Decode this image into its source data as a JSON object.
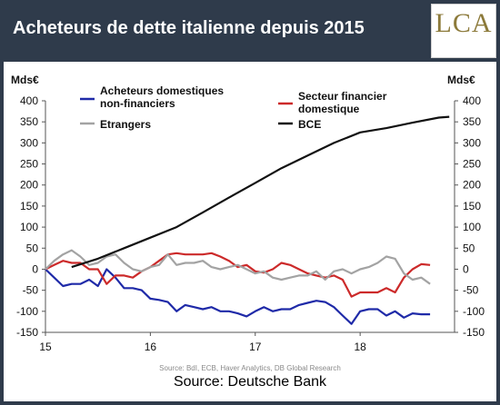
{
  "title": "Acheteurs de dette italienne depuis 2015",
  "logo": "LCA",
  "source_main": "Source: Deutsche Bank",
  "colors": {
    "background": "#2f3b4b",
    "domestic_nonfin": "#1f2aa8",
    "financial": "#cc2a2a",
    "foreign": "#a3a3a3",
    "ecb": "#111111"
  },
  "chart_data": {
    "type": "line",
    "title": "",
    "ylabel_left": "Mds€",
    "ylabel_right": "Mds€",
    "ylim": [
      -150,
      400
    ],
    "yticks": [
      400,
      350,
      300,
      250,
      200,
      150,
      100,
      50,
      0,
      -50,
      -100,
      -150
    ],
    "xlim": [
      2015.0,
      2018.9
    ],
    "xticks": [
      {
        "value": 2015,
        "label": "15"
      },
      {
        "value": 2016,
        "label": "16"
      },
      {
        "value": 2017,
        "label": "17"
      },
      {
        "value": 2018,
        "label": "18"
      }
    ],
    "grid": false,
    "source_note": "Source: BdI, ECB, Haver Analytics, DB Global Research",
    "series": [
      {
        "name": "Acheteurs domestiques non-financiers",
        "color": "#1f2aa8",
        "x": [
          2015.0,
          2015.083,
          2015.167,
          2015.25,
          2015.333,
          2015.417,
          2015.5,
          2015.583,
          2015.667,
          2015.75,
          2015.833,
          2015.917,
          2016.0,
          2016.083,
          2016.167,
          2016.25,
          2016.333,
          2016.417,
          2016.5,
          2016.583,
          2016.667,
          2016.75,
          2016.833,
          2016.917,
          2017.0,
          2017.083,
          2017.167,
          2017.25,
          2017.333,
          2017.417,
          2017.5,
          2017.583,
          2017.667,
          2017.75,
          2017.833,
          2017.917,
          2018.0,
          2018.083,
          2018.167,
          2018.25,
          2018.333,
          2018.417,
          2018.5,
          2018.583,
          2018.667
        ],
        "y": [
          0,
          -20,
          -40,
          -35,
          -35,
          -25,
          -40,
          0,
          -20,
          -45,
          -45,
          -50,
          -70,
          -73,
          -78,
          -100,
          -85,
          -90,
          -95,
          -90,
          -100,
          -100,
          -105,
          -112,
          -100,
          -90,
          -100,
          -95,
          -95,
          -85,
          -80,
          -75,
          -78,
          -90,
          -110,
          -130,
          -100,
          -95,
          -95,
          -110,
          -100,
          -115,
          -105,
          -107,
          -107
        ]
      },
      {
        "name": "Secteur financier domestique",
        "color": "#cc2a2a",
        "x": [
          2015.0,
          2015.083,
          2015.167,
          2015.25,
          2015.333,
          2015.417,
          2015.5,
          2015.583,
          2015.667,
          2015.75,
          2015.833,
          2015.917,
          2016.0,
          2016.083,
          2016.167,
          2016.25,
          2016.333,
          2016.417,
          2016.5,
          2016.583,
          2016.667,
          2016.75,
          2016.833,
          2016.917,
          2017.0,
          2017.083,
          2017.167,
          2017.25,
          2017.333,
          2017.417,
          2017.5,
          2017.583,
          2017.667,
          2017.75,
          2017.833,
          2017.917,
          2018.0,
          2018.083,
          2018.167,
          2018.25,
          2018.333,
          2018.417,
          2018.5,
          2018.583,
          2018.667
        ],
        "y": [
          0,
          10,
          20,
          15,
          15,
          0,
          0,
          -35,
          -15,
          -15,
          -20,
          -5,
          5,
          20,
          35,
          38,
          35,
          35,
          35,
          38,
          30,
          20,
          5,
          10,
          -5,
          -8,
          0,
          15,
          10,
          0,
          -10,
          -15,
          -20,
          -15,
          -25,
          -65,
          -55,
          -55,
          -55,
          -45,
          -55,
          -20,
          0,
          12,
          10
        ]
      },
      {
        "name": "Etrangers",
        "color": "#a3a3a3",
        "x": [
          2015.0,
          2015.083,
          2015.167,
          2015.25,
          2015.333,
          2015.417,
          2015.5,
          2015.583,
          2015.667,
          2015.75,
          2015.833,
          2015.917,
          2016.0,
          2016.083,
          2016.167,
          2016.25,
          2016.333,
          2016.417,
          2016.5,
          2016.583,
          2016.667,
          2016.75,
          2016.833,
          2016.917,
          2017.0,
          2017.083,
          2017.167,
          2017.25,
          2017.333,
          2017.417,
          2017.5,
          2017.583,
          2017.667,
          2017.75,
          2017.833,
          2017.917,
          2018.0,
          2018.083,
          2018.167,
          2018.25,
          2018.333,
          2018.417,
          2018.5,
          2018.583,
          2018.667
        ],
        "y": [
          0,
          20,
          35,
          45,
          30,
          10,
          15,
          30,
          35,
          15,
          0,
          -5,
          5,
          10,
          35,
          10,
          15,
          15,
          20,
          5,
          0,
          5,
          10,
          0,
          -10,
          -5,
          -20,
          -25,
          -20,
          -15,
          -15,
          -5,
          -25,
          -5,
          0,
          -10,
          0,
          5,
          15,
          30,
          25,
          -10,
          -25,
          -20,
          -35
        ]
      },
      {
        "name": "BCE",
        "color": "#111111",
        "x": [
          2015.25,
          2015.5,
          2015.75,
          2016.0,
          2016.25,
          2016.5,
          2016.75,
          2017.0,
          2017.25,
          2017.5,
          2017.75,
          2018.0,
          2018.25,
          2018.5,
          2018.75,
          2018.85
        ],
        "y": [
          5,
          25,
          50,
          75,
          100,
          135,
          170,
          205,
          240,
          270,
          300,
          325,
          335,
          348,
          360,
          362
        ]
      }
    ]
  }
}
